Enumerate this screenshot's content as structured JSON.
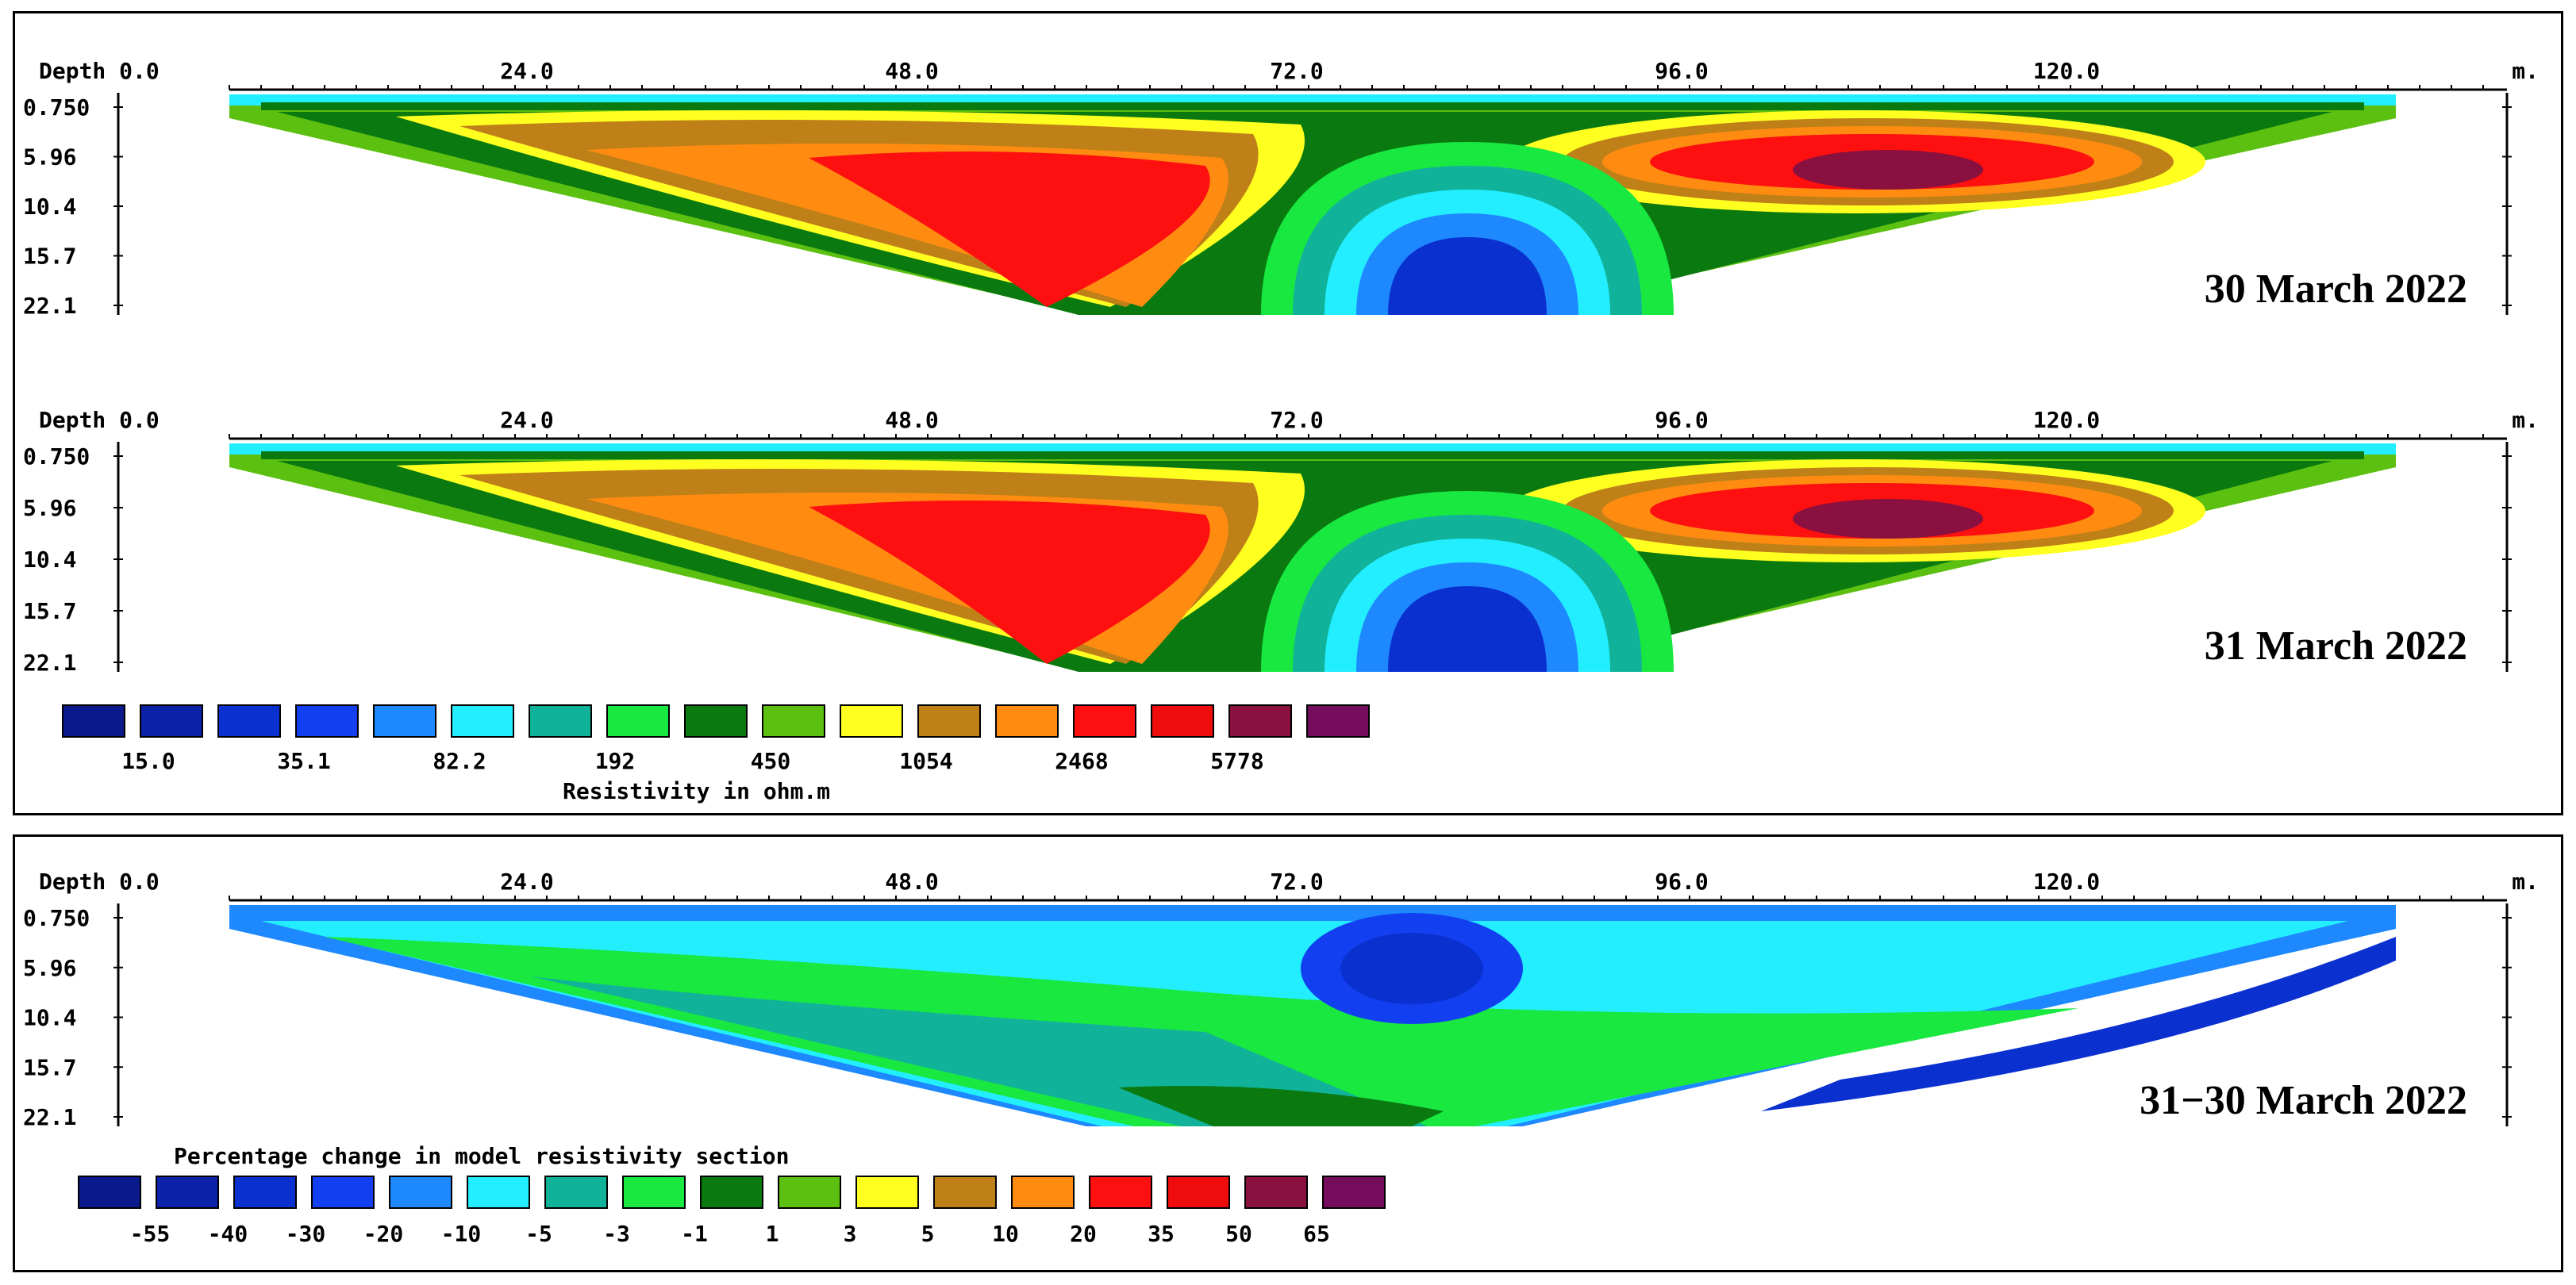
{
  "chart_data": [
    {
      "type": "heatmap",
      "title": "30 March 2022",
      "x_axis_label": "Depth",
      "x_ticks": [
        "0.0",
        "24.0",
        "48.0",
        "72.0",
        "96.0",
        "120.0"
      ],
      "x_unit": "m.",
      "y_ticks": [
        "0.750",
        "5.96",
        "10.4",
        "15.7",
        "22.1"
      ],
      "layer_bands": [
        "0.750",
        "5.96",
        "10.4",
        "15.7",
        "22.1"
      ]
    },
    {
      "type": "heatmap",
      "title": "31 March 2022",
      "x_axis_label": "Depth",
      "x_ticks": [
        "0.0",
        "24.0",
        "48.0",
        "72.0",
        "96.0",
        "120.0"
      ],
      "x_unit": "m.",
      "y_ticks": [
        "0.750",
        "5.96",
        "10.4",
        "15.7",
        "22.1"
      ]
    },
    {
      "type": "heatmap",
      "title": "31−30 March 2022",
      "x_axis_label": "Depth",
      "x_ticks": [
        "0.0",
        "24.0",
        "48.0",
        "72.0",
        "96.0",
        "120.0"
      ],
      "x_unit": "m.",
      "y_ticks": [
        "0.750",
        "5.96",
        "10.4",
        "15.7",
        "22.1"
      ]
    }
  ],
  "legend_resistivity": {
    "title": "Resistivity in ohm.m",
    "labels": [
      "15.0",
      "35.1",
      "82.2",
      "192",
      "450",
      "1054",
      "2468",
      "5778"
    ],
    "colors": [
      "#0a1a8c",
      "#0c22a8",
      "#0b30d0",
      "#1240f0",
      "#1e88ff",
      "#22eeff",
      "#10b39a",
      "#18e840",
      "#0a7a10",
      "#5cc010",
      "#ffff20",
      "#c08018",
      "#ff8c10",
      "#ff1010",
      "#ef0c0c",
      "#8a1040",
      "#760c5c"
    ]
  },
  "legend_change": {
    "title": "Percentage change in model resistivity section",
    "labels": [
      "-55",
      "-40",
      "-30",
      "-20",
      "-10",
      "-5",
      "-3",
      "-1",
      "1",
      "3",
      "5",
      "10",
      "20",
      "35",
      "50",
      "65"
    ],
    "colors": [
      "#0a1a8c",
      "#0c22a8",
      "#0b30d0",
      "#1240f0",
      "#1e88ff",
      "#22eeff",
      "#10b39a",
      "#18e840",
      "#0a7a10",
      "#5cc010",
      "#ffff20",
      "#c08018",
      "#ff8c10",
      "#ff1010",
      "#ef0c0c",
      "#8a1040",
      "#760c5c"
    ]
  }
}
